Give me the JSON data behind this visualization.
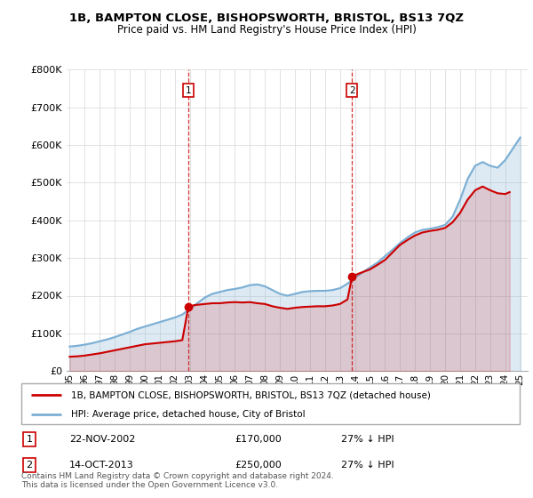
{
  "title": "1B, BAMPTON CLOSE, BISHOPSWORTH, BRISTOL, BS13 7QZ",
  "subtitle": "Price paid vs. HM Land Registry's House Price Index (HPI)",
  "ylim": [
    0,
    800000
  ],
  "yticks": [
    0,
    100000,
    200000,
    300000,
    400000,
    500000,
    600000,
    700000,
    800000
  ],
  "ytick_labels": [
    "£0",
    "£100K",
    "£200K",
    "£300K",
    "£400K",
    "£500K",
    "£600K",
    "£700K",
    "£800K"
  ],
  "xlim_start": 1994.8,
  "xlim_end": 2025.5,
  "transactions": [
    {
      "num": 1,
      "date": "22-NOV-2002",
      "price": 170000,
      "year": 2002.9,
      "hpi_pct": "27%",
      "direction": "↓"
    },
    {
      "num": 2,
      "date": "14-OCT-2013",
      "price": 250000,
      "year": 2013.8,
      "hpi_pct": "27%",
      "direction": "↓"
    }
  ],
  "legend_line1": "1B, BAMPTON CLOSE, BISHOPSWORTH, BRISTOL, BS13 7QZ (detached house)",
  "legend_line2": "HPI: Average price, detached house, City of Bristol",
  "footnote": "Contains HM Land Registry data © Crown copyright and database right 2024.\nThis data is licensed under the Open Government Licence v3.0.",
  "line_red_color": "#cc0000",
  "line_blue_color": "#7bafd4",
  "hpi_x": [
    1995.0,
    1995.5,
    1996.0,
    1996.5,
    1997.0,
    1997.5,
    1998.0,
    1998.5,
    1999.0,
    1999.5,
    2000.0,
    2000.5,
    2001.0,
    2001.5,
    2002.0,
    2002.5,
    2003.0,
    2003.5,
    2004.0,
    2004.5,
    2005.0,
    2005.5,
    2006.0,
    2006.5,
    2007.0,
    2007.5,
    2008.0,
    2008.5,
    2009.0,
    2009.5,
    2010.0,
    2010.5,
    2011.0,
    2011.5,
    2012.0,
    2012.5,
    2013.0,
    2013.5,
    2014.0,
    2014.5,
    2015.0,
    2015.5,
    2016.0,
    2016.5,
    2017.0,
    2017.5,
    2018.0,
    2018.5,
    2019.0,
    2019.5,
    2020.0,
    2020.5,
    2021.0,
    2021.5,
    2022.0,
    2022.5,
    2023.0,
    2023.5,
    2024.0,
    2024.5,
    2025.0
  ],
  "hpi_y": [
    65000,
    67000,
    70000,
    74000,
    79000,
    84000,
    90000,
    97000,
    104000,
    112000,
    118000,
    124000,
    130000,
    136000,
    142000,
    150000,
    165000,
    180000,
    195000,
    205000,
    210000,
    215000,
    218000,
    222000,
    228000,
    230000,
    225000,
    215000,
    205000,
    200000,
    205000,
    210000,
    212000,
    213000,
    213000,
    215000,
    220000,
    232000,
    248000,
    262000,
    275000,
    288000,
    305000,
    322000,
    340000,
    355000,
    368000,
    375000,
    378000,
    382000,
    388000,
    410000,
    455000,
    510000,
    545000,
    555000,
    545000,
    540000,
    560000,
    590000,
    620000
  ],
  "price_x": [
    1995.0,
    1995.5,
    1996.0,
    1996.5,
    1997.0,
    1997.5,
    1998.0,
    1998.5,
    1999.0,
    1999.5,
    2000.0,
    2000.5,
    2001.0,
    2001.5,
    2002.0,
    2002.5,
    2002.9,
    2003.3,
    2004.0,
    2004.5,
    2005.0,
    2005.5,
    2006.0,
    2006.5,
    2007.0,
    2007.5,
    2008.0,
    2008.5,
    2009.0,
    2009.5,
    2010.0,
    2010.5,
    2011.0,
    2011.5,
    2012.0,
    2012.5,
    2013.0,
    2013.5,
    2013.8,
    2014.2,
    2015.0,
    2015.5,
    2016.0,
    2016.5,
    2017.0,
    2017.5,
    2018.0,
    2018.5,
    2019.0,
    2019.5,
    2020.0,
    2020.5,
    2021.0,
    2021.5,
    2022.0,
    2022.5,
    2023.0,
    2023.5,
    2024.0,
    2024.3
  ],
  "price_y": [
    38000,
    39000,
    41000,
    44000,
    47000,
    51000,
    55000,
    59000,
    63000,
    67000,
    71000,
    73000,
    75000,
    77000,
    79000,
    82000,
    170000,
    175000,
    178000,
    180000,
    180000,
    182000,
    183000,
    182000,
    183000,
    180000,
    178000,
    172000,
    168000,
    165000,
    168000,
    170000,
    171000,
    172000,
    172000,
    174000,
    178000,
    190000,
    250000,
    258000,
    270000,
    282000,
    295000,
    315000,
    335000,
    348000,
    360000,
    368000,
    372000,
    375000,
    380000,
    395000,
    420000,
    455000,
    480000,
    490000,
    480000,
    472000,
    470000,
    475000
  ]
}
